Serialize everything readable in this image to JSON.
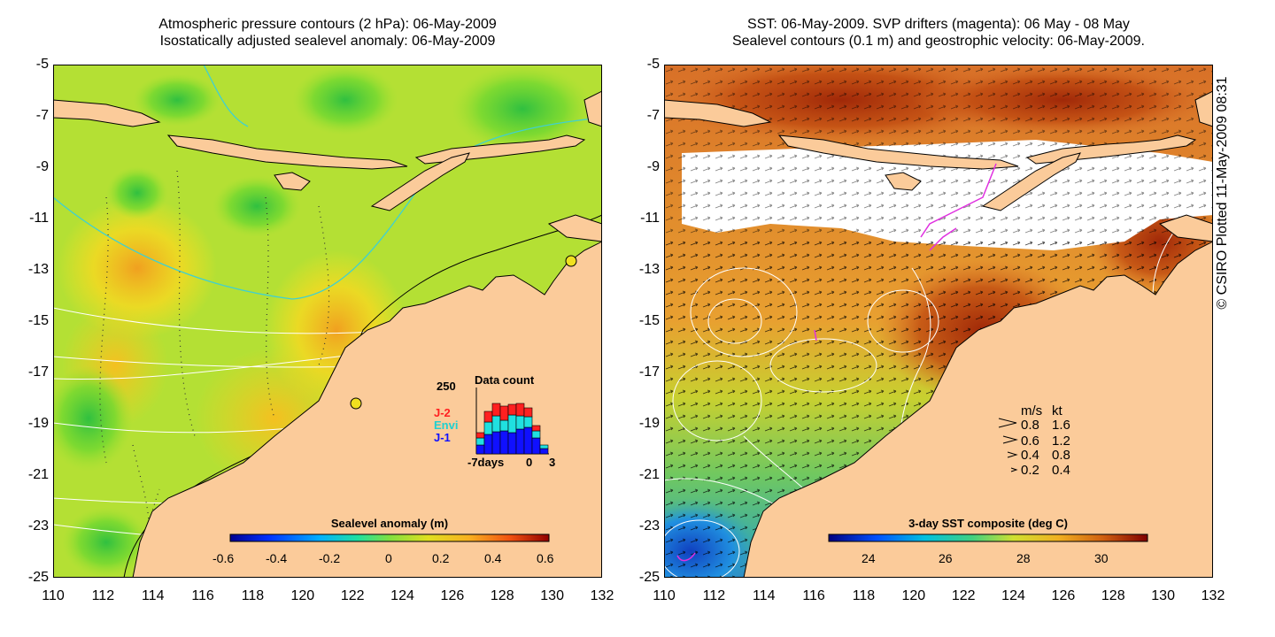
{
  "left": {
    "title_line1": "Atmospheric pressure contours (2 hPa): 06-May-2009",
    "title_line2": "Isostatically adjusted sealevel anomaly: 06-May-2009",
    "colorbar": {
      "label": "Sealevel anomaly (m)",
      "ticks": [
        "-0.6",
        "-0.4",
        "-0.2",
        "0",
        "0.2",
        "0.4",
        "0.6"
      ]
    },
    "data_count": {
      "title": "Data count",
      "ymax_label": "250",
      "x_left_label": "-7days",
      "x_mid_label": "0",
      "x_right_label": "3",
      "legend": [
        {
          "label": "J-2",
          "color": "#ff2020"
        },
        {
          "label": "Envi",
          "color": "#20e0e0"
        },
        {
          "label": "J-1",
          "color": "#1010ff"
        }
      ]
    }
  },
  "right": {
    "title_line1": "SST: 06-May-2009. SVP drifters (magenta): 06 May - 08 May",
    "title_line2": "Sealevel contours (0.1 m) and geostrophic velocity: 06-May-2009.",
    "colorbar": {
      "label": "3-day SST composite (deg C)",
      "ticks": [
        "24",
        "26",
        "28",
        "30"
      ]
    },
    "velocity_legend": {
      "header_ms": "m/s",
      "header_kt": "kt",
      "rows": [
        {
          "ms": "0.8",
          "kt": "1.6"
        },
        {
          "ms": "0.6",
          "kt": "1.2"
        },
        {
          "ms": "0.4",
          "kt": "0.8"
        },
        {
          "ms": "0.2",
          "kt": "0.4"
        }
      ]
    }
  },
  "axes": {
    "x_ticks": [
      "110",
      "112",
      "114",
      "116",
      "118",
      "120",
      "122",
      "124",
      "126",
      "128",
      "130",
      "132"
    ],
    "y_ticks": [
      "-5",
      "-7",
      "-9",
      "-11",
      "-13",
      "-15",
      "-17",
      "-19",
      "-21",
      "-23",
      "-25"
    ]
  },
  "credit": "© CSIRO Plotted 11-May-2009 08:31",
  "colors": {
    "land": "#fbcb9a",
    "sea_anomaly_mid": "#b8e43a",
    "sst_warm": "#c04a10",
    "sst_cold": "#2a8fe0"
  }
}
